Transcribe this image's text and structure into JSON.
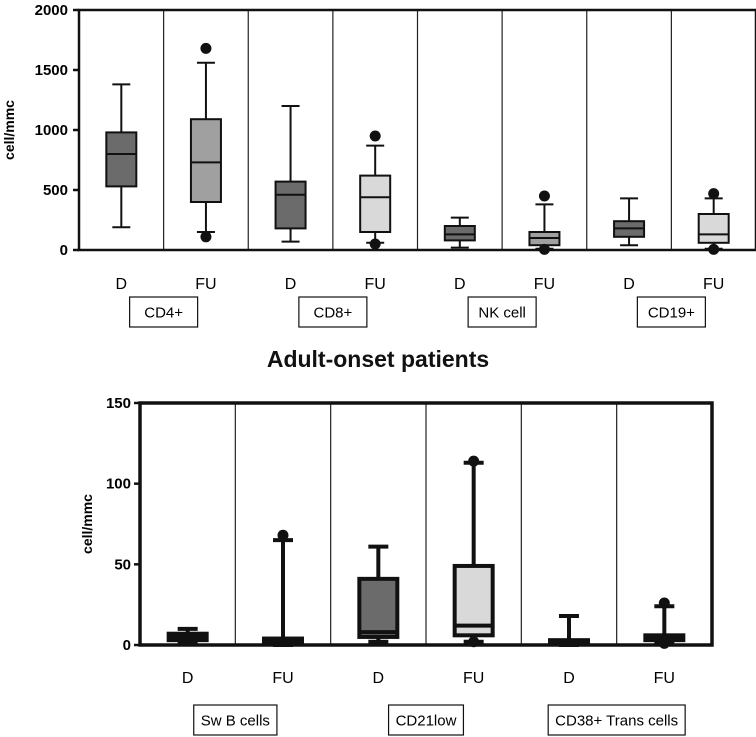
{
  "figure_title": "Adult-onset patients",
  "chart_data": [
    {
      "type": "boxplot",
      "ylabel": "cell/mmc",
      "ylim": [
        0,
        2000
      ],
      "yticks": [
        0,
        500,
        1000,
        1500,
        2000
      ],
      "categories": [
        "D",
        "FU",
        "D",
        "FU",
        "D",
        "FU",
        "D",
        "FU"
      ],
      "groups": [
        {
          "label": "CD4+",
          "columns": [
            0,
            1
          ]
        },
        {
          "label": "CD8+",
          "columns": [
            2,
            3
          ]
        },
        {
          "label": "NK cell",
          "columns": [
            4,
            5
          ]
        },
        {
          "label": "CD19+",
          "columns": [
            6,
            7
          ]
        }
      ],
      "boxes": [
        {
          "min": 190,
          "q1": 530,
          "median": 800,
          "q3": 980,
          "max": 1380,
          "outliers": [],
          "fill": "#6b6b6b"
        },
        {
          "min": 150,
          "q1": 400,
          "median": 730,
          "q3": 1090,
          "max": 1560,
          "outliers": [
            1680,
            110
          ],
          "fill": "#a0a0a0"
        },
        {
          "min": 70,
          "q1": 180,
          "median": 460,
          "q3": 570,
          "max": 1200,
          "outliers": [],
          "fill": "#6b6b6b"
        },
        {
          "min": 60,
          "q1": 150,
          "median": 440,
          "q3": 620,
          "max": 870,
          "outliers": [
            950,
            50
          ],
          "fill": "#d9d9d9"
        },
        {
          "min": 20,
          "q1": 80,
          "median": 130,
          "q3": 200,
          "max": 270,
          "outliers": [],
          "fill": "#6b6b6b"
        },
        {
          "min": 10,
          "q1": 40,
          "median": 100,
          "q3": 150,
          "max": 380,
          "outliers": [
            450,
            5
          ],
          "fill": "#a0a0a0"
        },
        {
          "min": 40,
          "q1": 110,
          "median": 180,
          "q3": 240,
          "max": 430,
          "outliers": [],
          "fill": "#6b6b6b"
        },
        {
          "min": 10,
          "q1": 60,
          "median": 130,
          "q3": 300,
          "max": 430,
          "outliers": [
            470,
            5
          ],
          "fill": "#d9d9d9"
        }
      ]
    },
    {
      "type": "boxplot",
      "ylabel": "cell/mmc",
      "ylim": [
        0,
        150
      ],
      "yticks": [
        0,
        50,
        100,
        150
      ],
      "categories": [
        "D",
        "FU",
        "D",
        "FU",
        "D",
        "FU"
      ],
      "groups": [
        {
          "label": "Sw B cells",
          "columns": [
            0,
            1
          ]
        },
        {
          "label": "CD21low",
          "columns": [
            2,
            3
          ]
        },
        {
          "label": "CD38+ Trans cells",
          "columns": [
            4,
            5
          ]
        }
      ],
      "boxes": [
        {
          "min": 1,
          "q1": 3,
          "median": 5,
          "q3": 7,
          "max": 10,
          "outliers": [],
          "fill": "#6b6b6b"
        },
        {
          "min": 0,
          "q1": 1,
          "median": 2,
          "q3": 4,
          "max": 65,
          "outliers": [
            68
          ],
          "fill": "#a0a0a0"
        },
        {
          "min": 2,
          "q1": 5,
          "median": 8,
          "q3": 41,
          "max": 61,
          "outliers": [],
          "fill": "#6b6b6b"
        },
        {
          "min": 2,
          "q1": 6,
          "median": 12,
          "q3": 49,
          "max": 113,
          "outliers": [
            114,
            2
          ],
          "fill": "#d9d9d9"
        },
        {
          "min": 0,
          "q1": 1,
          "median": 2,
          "q3": 3,
          "max": 18,
          "outliers": [],
          "fill": "#6b6b6b"
        },
        {
          "min": 1,
          "q1": 3,
          "median": 5,
          "q3": 6,
          "max": 24,
          "outliers": [
            26,
            1
          ],
          "fill": "#a0a0a0"
        }
      ]
    }
  ]
}
